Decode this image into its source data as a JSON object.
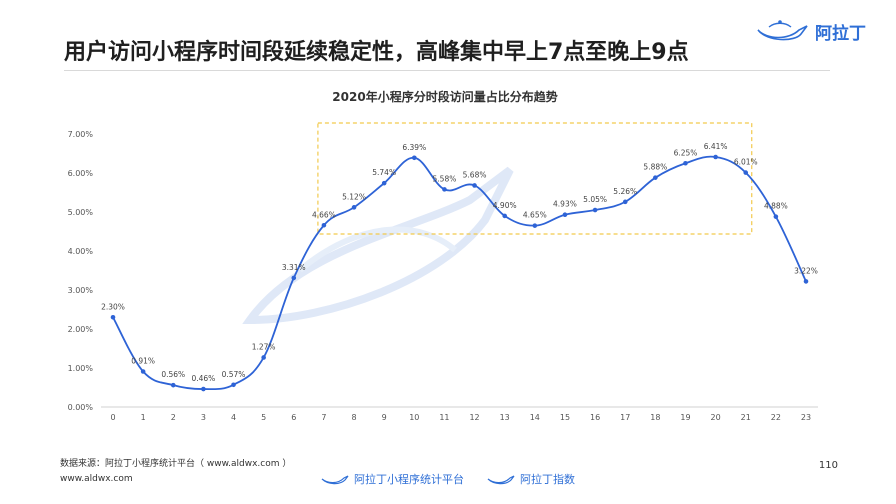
{
  "header": {
    "title": "用户访问小程序时间段延续稳定性，高峰集中早上7点至晚上9点",
    "brand": "阿拉丁"
  },
  "chart_data": {
    "type": "line",
    "title": "2020年小程序分时段访问量占比分布趋势",
    "x": [
      0,
      1,
      2,
      3,
      4,
      5,
      6,
      7,
      8,
      9,
      10,
      11,
      12,
      13,
      14,
      15,
      16,
      17,
      18,
      19,
      20,
      21,
      22,
      23
    ],
    "values": [
      2.3,
      0.91,
      0.56,
      0.46,
      0.57,
      1.27,
      3.31,
      4.66,
      5.12,
      5.74,
      6.39,
      5.58,
      5.68,
      4.9,
      4.65,
      4.93,
      5.05,
      5.26,
      5.88,
      6.25,
      6.41,
      6.01,
      4.88,
      3.22
    ],
    "data_labels": [
      "2.30%",
      "0.91%",
      "0.56%",
      "0.46%",
      "0.57%",
      "1.27%",
      "3.31%",
      "4.66%",
      "5.12%",
      "5.74%",
      "6.39%",
      "5.58%",
      "5.68%",
      "4.90%",
      "4.65%",
      "4.93%",
      "5.05%",
      "5.26%",
      "5.88%",
      "6.25%",
      "6.41%",
      "6.01%",
      "4.88%",
      "3.22%"
    ],
    "y_ticks": [
      "0.00%",
      "1.00%",
      "2.00%",
      "3.00%",
      "4.00%",
      "5.00%",
      "6.00%",
      "7.00%"
    ],
    "ylim": [
      0,
      7
    ],
    "grid": false,
    "highlight_range": [
      7,
      21
    ],
    "colors": {
      "line": "#2e63d6",
      "highlight": "#f2c94c"
    }
  },
  "footer": {
    "source": "数据来源：阿拉丁小程序统计平台（ www.aldwx.com ）",
    "url": "www.aldwx.com",
    "page_number": "110",
    "link_1": "阿拉丁小程序统计平台",
    "link_2": "阿拉丁指数"
  }
}
